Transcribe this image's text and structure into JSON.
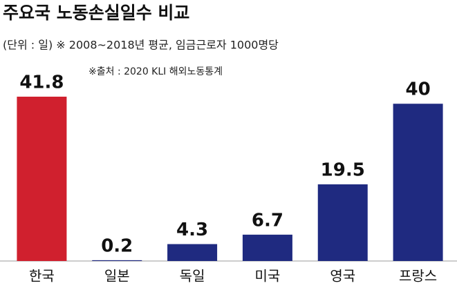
{
  "chart_data": {
    "type": "bar",
    "title": "주요국 노동손실일수 비교",
    "subtitle": "(단위 : 일)  ※ 2008~2018년 평균, 임금근로자 1000명당",
    "source": "※출처 : 2020 KLI 해외노동통계",
    "categories": [
      "한국",
      "일본",
      "독일",
      "미국",
      "영국",
      "프랑스"
    ],
    "values": [
      41.8,
      0.2,
      4.3,
      6.7,
      19.5,
      40
    ],
    "colors": [
      "#d0202e",
      "#1f2a80",
      "#1f2a80",
      "#1f2a80",
      "#1f2a80",
      "#1f2a80"
    ]
  }
}
